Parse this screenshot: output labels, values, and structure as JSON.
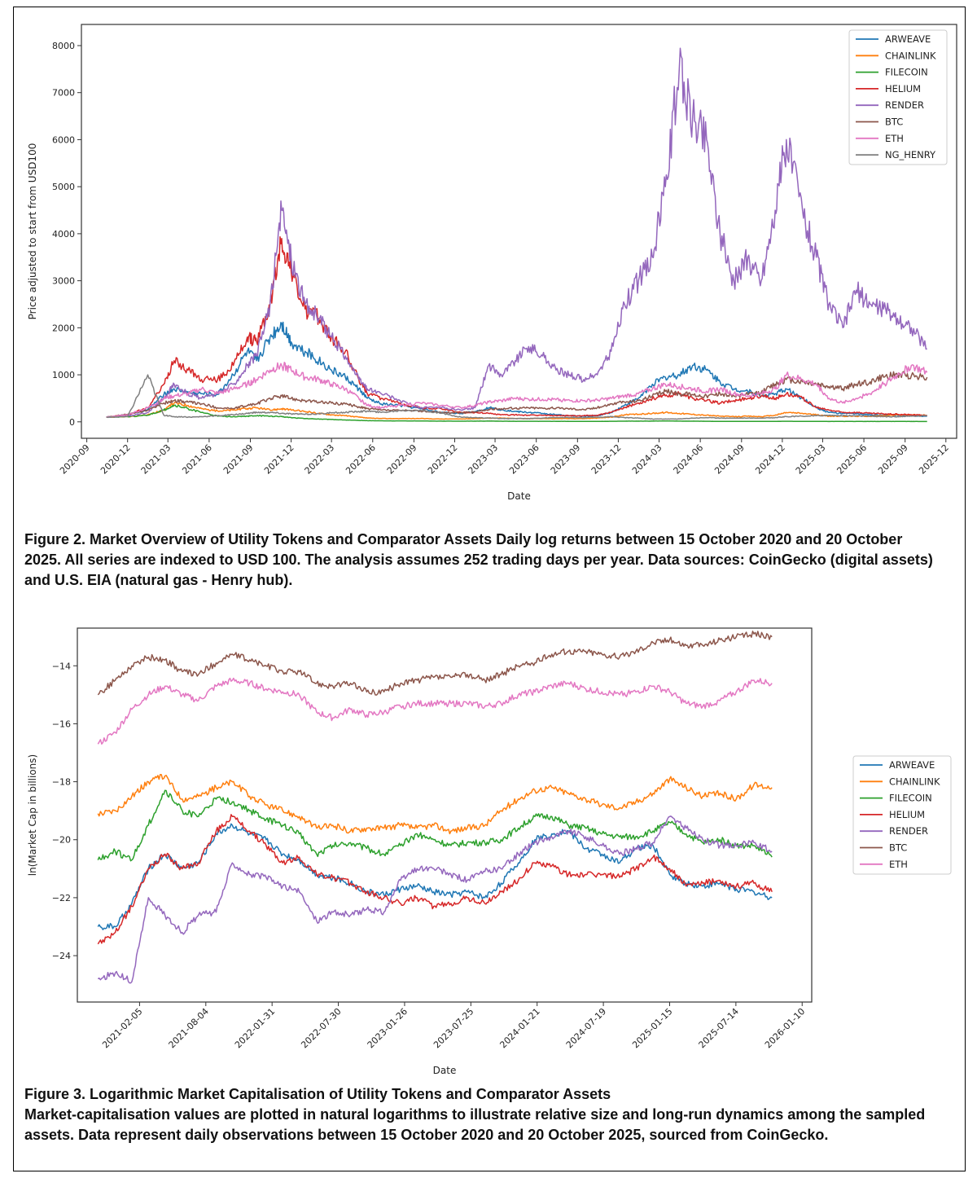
{
  "figure2_caption": "Figure 2. Market Overview of Utility Tokens and Comparator Assets Daily log returns between 15 October 2020 and 20 October 2025. All series are indexed to USD 100. The analysis assumes 252 trading days per year. Data sources: CoinGecko (digital assets) and U.S. EIA (natural gas - Henry hub).",
  "figure3_caption_title": "Figure 3. Logarithmic Market Capitalisation of Utility Tokens and Comparator Assets",
  "figure3_caption_body": "Market-capitalisation values are plotted in natural logarithms to illustrate relative size and long-run dynamics among the sampled assets. Data represent daily observations between 15 October 2020 and 20 October 2025, sourced from CoinGecko.",
  "chart_data": [
    {
      "type": "line",
      "xlabel": "Date",
      "ylabel": "Price adjusted to start from USD100",
      "x_ticks": [
        "2020-09",
        "2020-12",
        "2021-03",
        "2021-06",
        "2021-09",
        "2021-12",
        "2022-03",
        "2022-06",
        "2022-09",
        "2022-12",
        "2023-03",
        "2023-06",
        "2023-09",
        "2023-12",
        "2024-03",
        "2024-06",
        "2024-09",
        "2024-12",
        "2025-03",
        "2025-06",
        "2025-09",
        "2025-12"
      ],
      "y_ticks": [
        0,
        1000,
        2000,
        3000,
        4000,
        5000,
        6000,
        7000,
        8000
      ],
      "ylim": [
        -350,
        8450
      ],
      "legend_position": "top-right",
      "x": [
        "2020-10-15",
        "2020-12-01",
        "2021-01-15",
        "2021-02-20",
        "2021-03-15",
        "2021-04-15",
        "2021-05-15",
        "2021-06-20",
        "2021-07-25",
        "2021-08-25",
        "2021-09-15",
        "2021-10-15",
        "2021-11-10",
        "2021-12-01",
        "2022-01-01",
        "2022-02-01",
        "2022-03-01",
        "2022-04-01",
        "2022-05-01",
        "2022-05-20",
        "2022-06-20",
        "2022-08-01",
        "2022-09-15",
        "2022-11-01",
        "2022-12-15",
        "2023-01-15",
        "2023-02-15",
        "2023-03-15",
        "2023-04-15",
        "2023-05-15",
        "2023-06-15",
        "2023-07-15",
        "2023-08-15",
        "2023-09-15",
        "2023-10-15",
        "2023-11-15",
        "2023-12-15",
        "2024-01-15",
        "2024-02-15",
        "2024-03-15",
        "2024-04-15",
        "2024-05-15",
        "2024-06-15",
        "2024-07-15",
        "2024-08-15",
        "2024-09-15",
        "2024-10-15",
        "2024-11-15",
        "2024-12-10",
        "2025-01-15",
        "2025-02-15",
        "2025-03-15",
        "2025-04-15",
        "2025-05-15",
        "2025-06-15",
        "2025-07-15",
        "2025-08-15",
        "2025-09-15",
        "2025-10-20"
      ],
      "series": [
        {
          "name": "ARWEAVE",
          "color": "#1f77b4",
          "values": [
            100,
            150,
            260,
            580,
            700,
            620,
            600,
            580,
            1000,
            1500,
            1300,
            1800,
            2100,
            1700,
            1500,
            1300,
            1100,
            950,
            700,
            500,
            380,
            350,
            280,
            200,
            180,
            220,
            300,
            260,
            220,
            200,
            180,
            150,
            130,
            120,
            130,
            200,
            350,
            500,
            800,
            950,
            1000,
            1200,
            1100,
            850,
            700,
            650,
            550,
            600,
            700,
            500,
            300,
            200,
            180,
            170,
            150,
            140,
            140,
            130,
            120
          ]
        },
        {
          "name": "CHAINLINK",
          "color": "#ff7f0e",
          "values": [
            100,
            110,
            150,
            250,
            400,
            350,
            280,
            230,
            250,
            280,
            300,
            250,
            280,
            250,
            220,
            180,
            150,
            130,
            100,
            80,
            70,
            70,
            70,
            60,
            60,
            70,
            80,
            80,
            70,
            70,
            70,
            70,
            70,
            70,
            80,
            100,
            150,
            160,
            180,
            200,
            180,
            160,
            140,
            120,
            110,
            120,
            110,
            140,
            200,
            180,
            150,
            120,
            120,
            120,
            120,
            130,
            150,
            150,
            140
          ]
        },
        {
          "name": "FILECOIN",
          "color": "#2ca02c",
          "values": [
            100,
            110,
            140,
            250,
            350,
            280,
            200,
            120,
            110,
            120,
            130,
            120,
            110,
            90,
            70,
            60,
            50,
            40,
            30,
            25,
            22,
            20,
            18,
            15,
            14,
            15,
            16,
            14,
            12,
            12,
            12,
            11,
            11,
            10,
            10,
            12,
            14,
            15,
            16,
            18,
            15,
            14,
            12,
            10,
            10,
            10,
            9,
            10,
            12,
            10,
            9,
            8,
            8,
            8,
            8,
            8,
            8,
            8,
            7
          ]
        },
        {
          "name": "HELIUM",
          "color": "#d62728",
          "values": [
            100,
            150,
            300,
            800,
            1300,
            1100,
            900,
            900,
            1200,
            1800,
            1700,
            2500,
            3900,
            3200,
            2400,
            2200,
            1800,
            1500,
            900,
            600,
            500,
            400,
            300,
            280,
            200,
            200,
            180,
            150,
            150,
            140,
            140,
            130,
            130,
            130,
            140,
            200,
            300,
            400,
            500,
            550,
            600,
            500,
            450,
            400,
            450,
            500,
            550,
            500,
            600,
            500,
            300,
            250,
            200,
            200,
            180,
            170,
            160,
            150,
            140
          ]
        },
        {
          "name": "RENDER",
          "color": "#9467bd",
          "values": [
            100,
            120,
            200,
            500,
            800,
            600,
            500,
            600,
            800,
            1200,
            1400,
            2500,
            4500,
            3500,
            2500,
            2200,
            1800,
            1400,
            900,
            700,
            600,
            450,
            300,
            300,
            250,
            300,
            1200,
            1000,
            1300,
            1600,
            1400,
            1100,
            1000,
            900,
            1000,
            1500,
            2500,
            3000,
            3500,
            5000,
            7500,
            6500,
            6000,
            4000,
            3000,
            3500,
            3000,
            4500,
            6000,
            4500,
            3500,
            2500,
            2000,
            2800,
            2500,
            2400,
            2200,
            2000,
            1550
          ]
        },
        {
          "name": "BTC",
          "color": "#8c564b",
          "values": [
            100,
            160,
            250,
            400,
            450,
            420,
            380,
            300,
            280,
            350,
            380,
            500,
            550,
            500,
            450,
            420,
            400,
            380,
            320,
            280,
            250,
            240,
            230,
            200,
            190,
            210,
            260,
            280,
            290,
            300,
            290,
            290,
            280,
            260,
            300,
            380,
            420,
            450,
            550,
            650,
            600,
            580,
            550,
            600,
            550,
            580,
            620,
            800,
            900,
            850,
            800,
            750,
            700,
            800,
            850,
            950,
            1000,
            980,
            950
          ]
        },
        {
          "name": "ETH",
          "color": "#e377c2",
          "values": [
            100,
            150,
            300,
            500,
            550,
            600,
            700,
            600,
            700,
            800,
            900,
            1100,
            1200,
            1100,
            950,
            900,
            800,
            700,
            500,
            350,
            300,
            350,
            400,
            350,
            300,
            350,
            420,
            450,
            500,
            480,
            480,
            470,
            450,
            450,
            460,
            500,
            550,
            600,
            700,
            800,
            750,
            700,
            650,
            700,
            600,
            550,
            600,
            700,
            1000,
            900,
            800,
            500,
            400,
            500,
            600,
            800,
            1000,
            1200,
            1050
          ]
        },
        {
          "name": "NG_HENRY",
          "color": "#7f7f7f",
          "values": [
            100,
            110,
            1000,
            140,
            110,
            100,
            110,
            130,
            150,
            180,
            200,
            200,
            180,
            170,
            160,
            170,
            190,
            200,
            220,
            230,
            200,
            240,
            250,
            180,
            100,
            90,
            80,
            70,
            70,
            70,
            80,
            90,
            90,
            90,
            100,
            110,
            90,
            80,
            60,
            60,
            60,
            80,
            90,
            80,
            80,
            80,
            80,
            90,
            110,
            120,
            130,
            140,
            130,
            130,
            120,
            110,
            110,
            120,
            130
          ]
        }
      ]
    },
    {
      "type": "line",
      "xlabel": "Date",
      "ylabel": "ln(Market Cap in billions)",
      "x_ticks": [
        "2021-02-05",
        "2021-08-04",
        "2022-01-31",
        "2022-07-30",
        "2023-01-26",
        "2023-07-25",
        "2024-01-21",
        "2024-07-19",
        "2025-01-15",
        "2025-07-14",
        "2026-01-10"
      ],
      "y_ticks": [
        -14,
        -16,
        -18,
        -20,
        -22,
        -24
      ],
      "ylim": [
        -25.6,
        -12.7
      ],
      "legend_position": "outside right",
      "x": [
        "2020-10-15",
        "2020-12-01",
        "2021-01-15",
        "2021-03-01",
        "2021-04-15",
        "2021-06-01",
        "2021-07-15",
        "2021-09-01",
        "2021-10-15",
        "2021-12-01",
        "2022-01-15",
        "2022-03-01",
        "2022-04-15",
        "2022-06-01",
        "2022-07-15",
        "2022-09-01",
        "2022-10-15",
        "2022-12-01",
        "2023-01-15",
        "2023-03-01",
        "2023-04-15",
        "2023-06-01",
        "2023-07-15",
        "2023-09-01",
        "2023-10-15",
        "2023-12-01",
        "2024-01-15",
        "2024-03-01",
        "2024-04-15",
        "2024-06-01",
        "2024-07-15",
        "2024-09-01",
        "2024-10-15",
        "2024-12-01",
        "2025-01-15",
        "2025-03-01",
        "2025-04-15",
        "2025-06-01",
        "2025-07-15",
        "2025-09-01",
        "2025-10-20"
      ],
      "series": [
        {
          "name": "ARWEAVE",
          "color": "#1f77b4",
          "values": [
            -23.0,
            -23.0,
            -22.2,
            -21.0,
            -20.5,
            -21.0,
            -20.8,
            -19.8,
            -19.5,
            -19.8,
            -20.0,
            -20.5,
            -20.7,
            -21.2,
            -21.3,
            -21.5,
            -21.8,
            -21.9,
            -21.7,
            -21.6,
            -21.8,
            -21.9,
            -21.8,
            -22.0,
            -21.5,
            -20.8,
            -20.0,
            -19.8,
            -19.7,
            -20.3,
            -20.5,
            -20.8,
            -20.3,
            -20.2,
            -21.2,
            -21.5,
            -21.6,
            -21.5,
            -21.7,
            -21.8,
            -22.0
          ]
        },
        {
          "name": "CHAINLINK",
          "color": "#ff7f0e",
          "values": [
            -19.1,
            -19.0,
            -18.5,
            -18.0,
            -17.8,
            -18.6,
            -18.5,
            -18.2,
            -18.0,
            -18.5,
            -18.8,
            -19.0,
            -19.2,
            -19.6,
            -19.5,
            -19.7,
            -19.6,
            -19.6,
            -19.5,
            -19.6,
            -19.5,
            -19.7,
            -19.6,
            -19.5,
            -19.0,
            -18.6,
            -18.3,
            -18.2,
            -18.4,
            -18.6,
            -18.8,
            -18.9,
            -18.7,
            -18.4,
            -17.9,
            -18.2,
            -18.5,
            -18.4,
            -18.6,
            -18.1,
            -18.2
          ]
        },
        {
          "name": "FILECOIN",
          "color": "#2ca02c",
          "values": [
            -20.7,
            -20.4,
            -20.7,
            -19.5,
            -18.3,
            -19.0,
            -19.2,
            -18.6,
            -18.7,
            -19.0,
            -19.3,
            -19.5,
            -19.8,
            -20.5,
            -20.2,
            -20.1,
            -20.3,
            -20.5,
            -20.2,
            -19.8,
            -20.0,
            -20.2,
            -20.1,
            -20.1,
            -20.0,
            -19.6,
            -19.2,
            -19.2,
            -19.5,
            -19.6,
            -19.8,
            -19.9,
            -19.9,
            -19.7,
            -19.4,
            -19.8,
            -20.1,
            -20.0,
            -20.2,
            -20.2,
            -20.6
          ]
        },
        {
          "name": "HELIUM",
          "color": "#d62728",
          "values": [
            -23.6,
            -23.2,
            -22.3,
            -21.0,
            -20.5,
            -21.0,
            -20.8,
            -19.7,
            -19.2,
            -19.7,
            -20.2,
            -20.8,
            -20.6,
            -21.2,
            -21.3,
            -21.5,
            -21.8,
            -22.0,
            -22.2,
            -22.0,
            -22.3,
            -22.2,
            -22.0,
            -22.2,
            -21.8,
            -21.4,
            -20.8,
            -20.9,
            -21.2,
            -21.2,
            -21.2,
            -21.3,
            -21.0,
            -20.6,
            -21.0,
            -21.6,
            -21.5,
            -21.4,
            -21.6,
            -21.5,
            -21.8
          ]
        },
        {
          "name": "RENDER",
          "color": "#9467bd",
          "values": [
            -24.8,
            -24.6,
            -24.9,
            -22.0,
            -22.6,
            -23.2,
            -22.6,
            -22.5,
            -20.8,
            -21.2,
            -21.3,
            -21.6,
            -21.8,
            -22.8,
            -22.5,
            -22.6,
            -22.4,
            -22.5,
            -21.4,
            -21.0,
            -21.0,
            -21.2,
            -21.4,
            -21.1,
            -21.0,
            -20.5,
            -20.1,
            -19.9,
            -19.7,
            -19.9,
            -20.2,
            -20.5,
            -20.3,
            -20.1,
            -19.2,
            -19.6,
            -20.0,
            -20.2,
            -20.2,
            -20.1,
            -20.4
          ]
        },
        {
          "name": "BTC",
          "color": "#8c564b",
          "values": [
            -15.0,
            -14.5,
            -14.0,
            -13.7,
            -13.8,
            -14.2,
            -14.3,
            -13.9,
            -13.6,
            -13.8,
            -14.0,
            -14.2,
            -14.2,
            -14.6,
            -14.7,
            -14.6,
            -14.9,
            -14.9,
            -14.6,
            -14.5,
            -14.4,
            -14.4,
            -14.3,
            -14.5,
            -14.3,
            -14.0,
            -13.9,
            -13.6,
            -13.5,
            -13.5,
            -13.6,
            -13.7,
            -13.5,
            -13.2,
            -13.1,
            -13.3,
            -13.3,
            -13.1,
            -13.0,
            -12.9,
            -13.0
          ]
        },
        {
          "name": "ETH",
          "color": "#e377c2",
          "values": [
            -16.7,
            -16.3,
            -15.5,
            -15.0,
            -14.7,
            -15.0,
            -15.2,
            -14.7,
            -14.5,
            -14.6,
            -14.8,
            -14.9,
            -15.0,
            -15.6,
            -15.8,
            -15.5,
            -15.7,
            -15.6,
            -15.4,
            -15.3,
            -15.3,
            -15.3,
            -15.3,
            -15.4,
            -15.3,
            -15.0,
            -14.9,
            -14.7,
            -14.6,
            -14.8,
            -14.9,
            -15.0,
            -14.9,
            -14.7,
            -14.9,
            -15.3,
            -15.4,
            -15.2,
            -14.9,
            -14.5,
            -14.6
          ]
        }
      ]
    }
  ]
}
